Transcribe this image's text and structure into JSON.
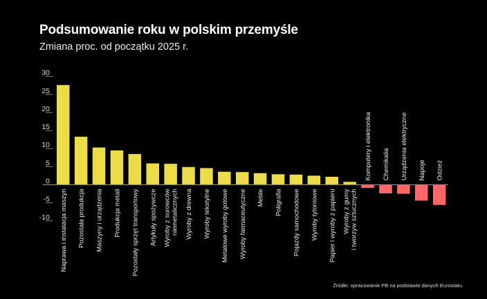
{
  "chart_data": {
    "type": "bar",
    "title": "Podsumowanie roku w polskim przemyśle",
    "subtitle": "Zmiana proc. od początku 2025 r.",
    "source": "Źródło: opracowanie PB na podstawie danych Eurostatu",
    "ylim": [
      -10,
      30
    ],
    "yticks": [
      30,
      25,
      20,
      15,
      10,
      5,
      0,
      -5,
      -10
    ],
    "grid": false,
    "colors": {
      "positive": "#ecdc47",
      "negative": "#ff6666",
      "axis": "#888888"
    },
    "categories": [
      "Naprawa i instalacja maszyn",
      "Pozostała produkcja",
      "Maszyny i urządzenia",
      "Produkcja metali",
      "Pozostały sprzęt transportowy",
      "Artykuły spożywcze",
      "Wyroby z surowców\nniemetalicznych",
      "Wyroby z drewna",
      "Wyroby tekstylne",
      "Metalowe wyroby gotowe",
      "Wyroby farmaceutyczne",
      "Meble",
      "Poligrafia",
      "Pojazdy samochodowe",
      "Wyroby tytoniowe",
      "Papier i wyroby z papieru",
      "Wyroby z gumy\ni tworzyw sztucznych",
      "Komputery i elektronika",
      "Chemikalia",
      "Urządzenia elektryczne",
      "Napoje",
      "Odzież"
    ],
    "values": [
      27.6,
      13.3,
      10.3,
      9.5,
      8.5,
      5.9,
      5.8,
      4.9,
      4.6,
      3.6,
      3.5,
      3.2,
      2.9,
      2.8,
      2.5,
      2.2,
      0.8,
      -0.9,
      -2.4,
      -2.5,
      -4.4,
      -5.6
    ]
  }
}
